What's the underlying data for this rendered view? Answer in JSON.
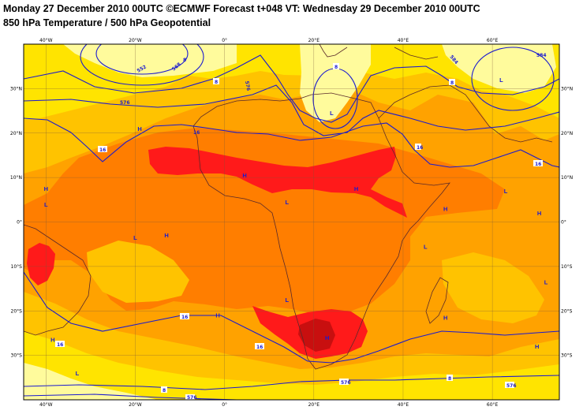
{
  "header": {
    "title_line1": "Monday 27 December 2010 00UTC ©ECMWF Forecast t+048 VT: Wednesday 29 December 2010 00UTC",
    "title_line2": "850 hPa Temperature / 500 hPa Geopotential"
  },
  "axes": {
    "longitude_ticks": [
      "40°W",
      "20°W",
      "0°",
      "20°E",
      "40°E",
      "60°E"
    ],
    "latitude_ticks": [
      "30°N",
      "20°N",
      "10°N",
      "0°",
      "10°S",
      "20°S",
      "30°S"
    ]
  },
  "pressure_centers": [
    {
      "type": "H",
      "lon": -19,
      "lat": 20.5
    },
    {
      "type": "H",
      "lon": -40,
      "lat": 7
    },
    {
      "type": "L",
      "lon": -40,
      "lat": 3.5
    },
    {
      "type": "L",
      "lon": -20,
      "lat": -4
    },
    {
      "type": "H",
      "lon": -13,
      "lat": -3.5
    },
    {
      "type": "H",
      "lon": 4.5,
      "lat": 10
    },
    {
      "type": "L",
      "lon": 14,
      "lat": 4
    },
    {
      "type": "H",
      "lon": 29.5,
      "lat": 7
    },
    {
      "type": "L",
      "lon": 24,
      "lat": 24
    },
    {
      "type": "L",
      "lon": 62,
      "lat": 31.5
    },
    {
      "type": "H",
      "lon": 49.5,
      "lat": 2.5
    },
    {
      "type": "L",
      "lon": 63,
      "lat": 6.5
    },
    {
      "type": "H",
      "lon": 70.5,
      "lat": 1.5
    },
    {
      "type": "L",
      "lon": 45,
      "lat": -6
    },
    {
      "type": "L",
      "lon": 72,
      "lat": -14
    },
    {
      "type": "H",
      "lon": 49.5,
      "lat": -22
    },
    {
      "type": "L",
      "lon": 14,
      "lat": -18
    },
    {
      "type": "H",
      "lon": -1.5,
      "lat": -21.5
    },
    {
      "type": "H",
      "lon": -38.5,
      "lat": -27
    },
    {
      "type": "L",
      "lon": -33,
      "lat": -34.5
    },
    {
      "type": "H",
      "lon": 23,
      "lat": -26.5
    },
    {
      "type": "H",
      "lon": 70,
      "lat": -28.5
    }
  ],
  "contour_labels": [
    "552",
    "568",
    "576",
    "584",
    "8",
    "16",
    "576",
    "584"
  ],
  "colors": {
    "frame": "#000000",
    "contours": "#1a1ad0",
    "coast": "#5a2a2a",
    "temp_pale": "#fffb9c",
    "temp_yellow": "#ffe400",
    "temp_gold": "#ffc300",
    "temp_orange": "#ffa200",
    "temp_deep_orange": "#ff7e00",
    "temp_red": "#ff1a1a",
    "temp_darkred": "#c80f0f"
  }
}
